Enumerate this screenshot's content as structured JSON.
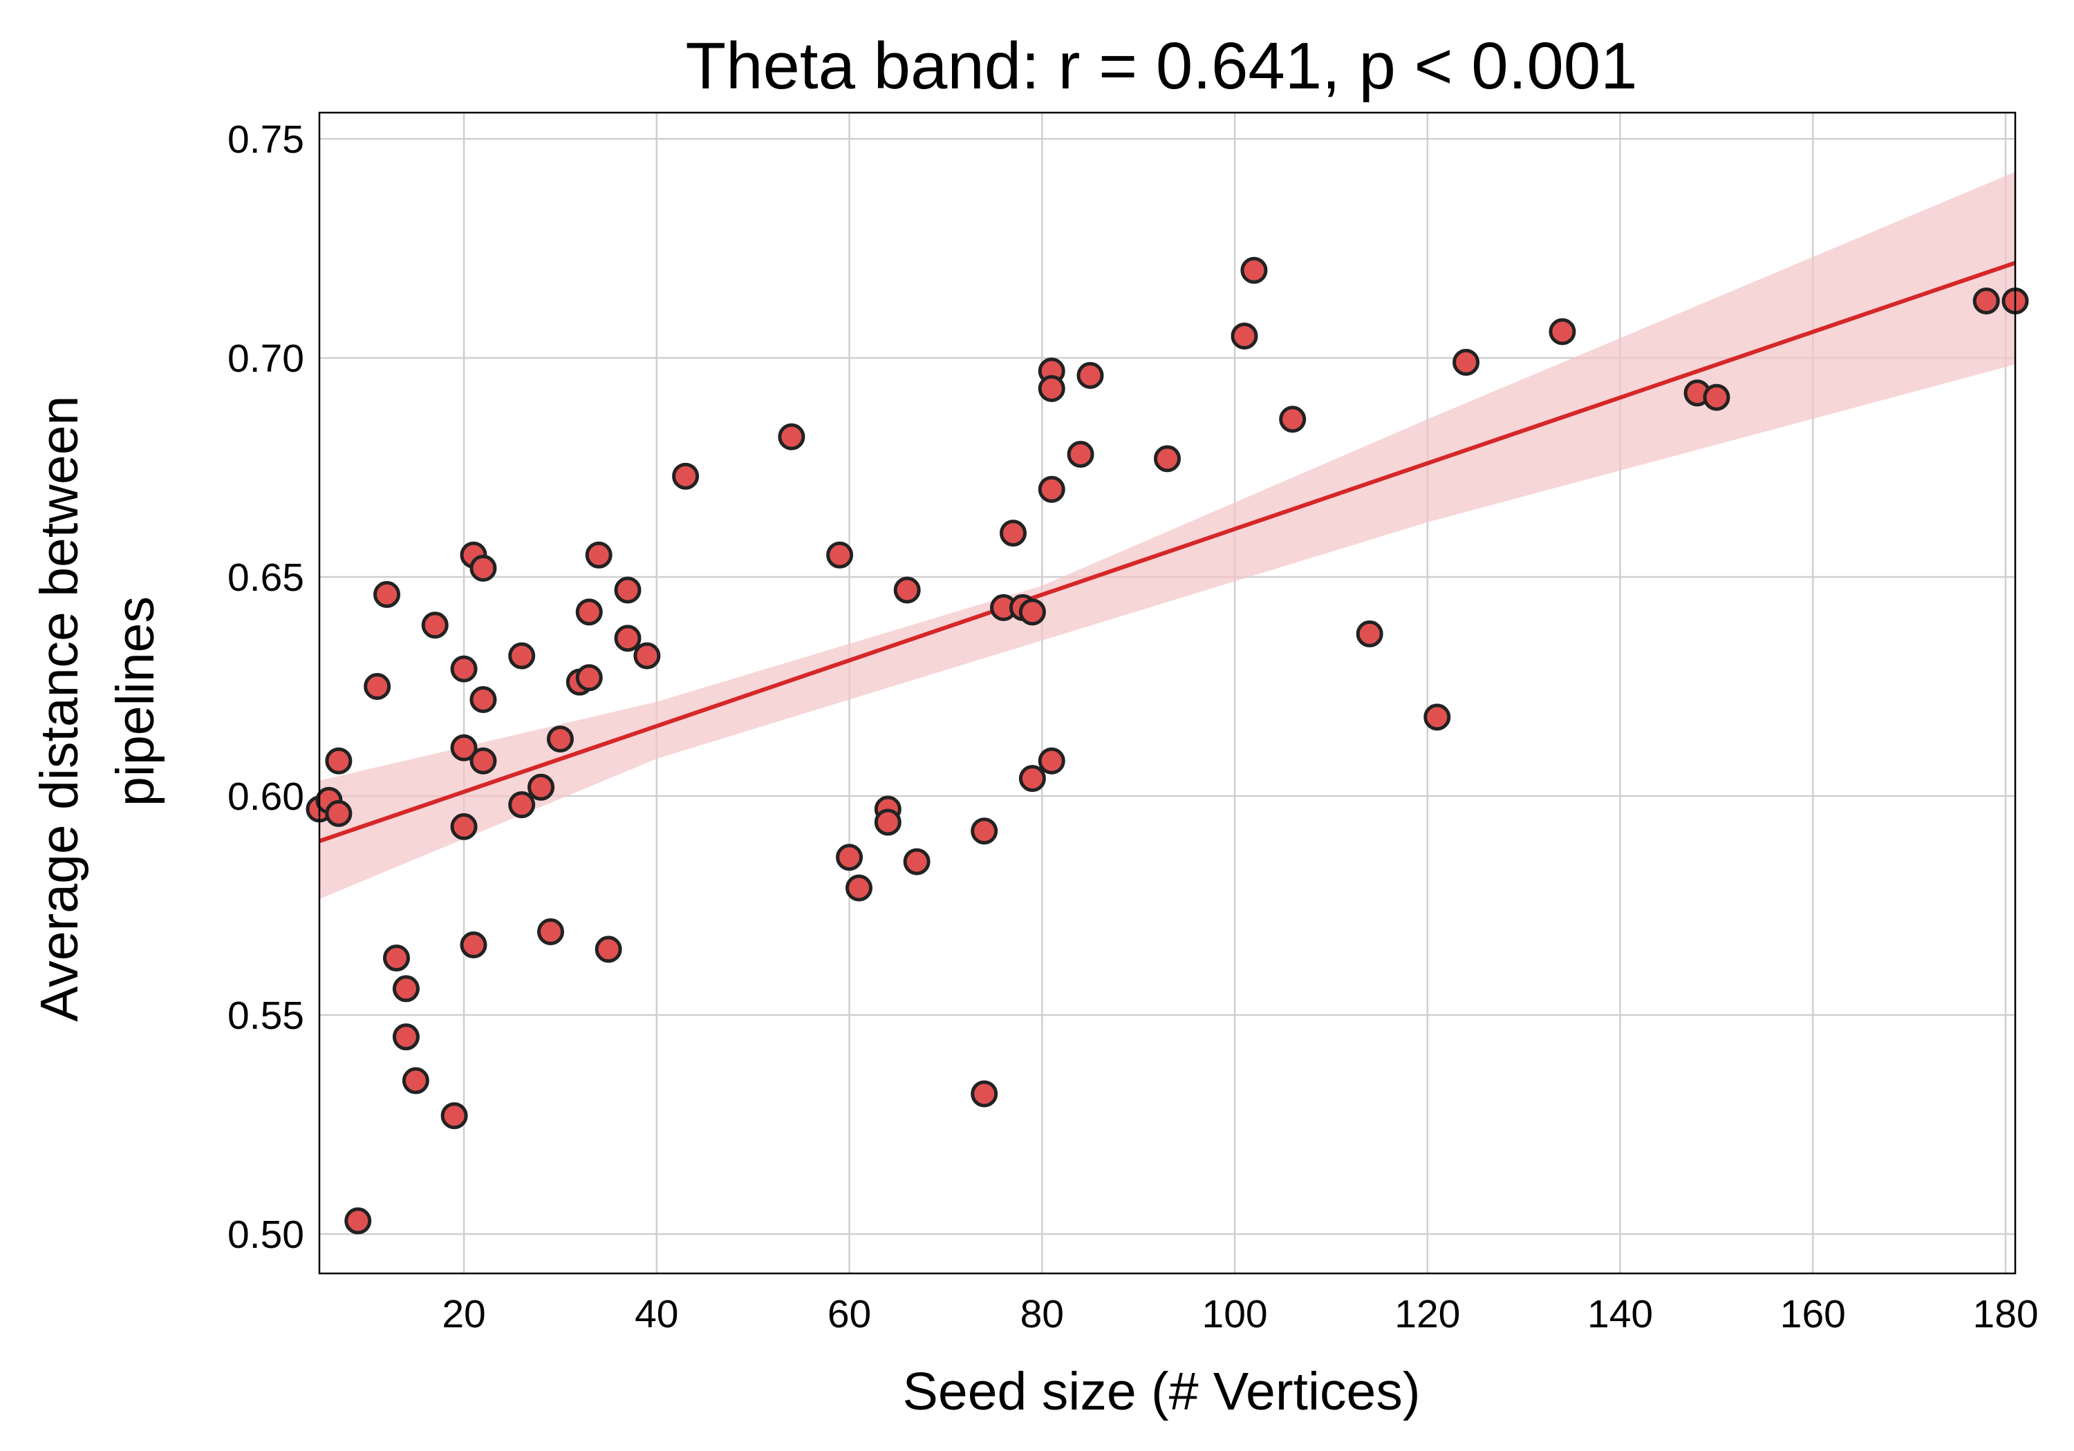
{
  "chart_data": {
    "type": "scatter",
    "title": "Theta band: r = 0.641, p < 0.001",
    "xlabel": "Seed size (# Vertices)",
    "ylabel_lines": [
      "Average distance between",
      "pipelines"
    ],
    "xlim": [
      5,
      181
    ],
    "ylim": [
      0.491,
      0.756
    ],
    "x_ticks": [
      20,
      40,
      60,
      80,
      100,
      120,
      140,
      160,
      180
    ],
    "y_ticks": [
      0.5,
      0.55,
      0.6,
      0.65,
      0.7,
      0.75
    ],
    "x_tick_labels": [
      "20",
      "40",
      "60",
      "80",
      "100",
      "120",
      "140",
      "160",
      "180"
    ],
    "y_tick_labels": [
      "0.50",
      "0.55",
      "0.60",
      "0.65",
      "0.70",
      "0.75"
    ],
    "grid": true,
    "colors": {
      "points": "#e05050",
      "point_edge": "#222222",
      "regression": "#d62728",
      "confidence_band": "#f4c4c8"
    },
    "points": [
      {
        "x": 5,
        "y": 0.597
      },
      {
        "x": 6,
        "y": 0.599
      },
      {
        "x": 7,
        "y": 0.596
      },
      {
        "x": 7,
        "y": 0.608
      },
      {
        "x": 9,
        "y": 0.503
      },
      {
        "x": 11,
        "y": 0.625
      },
      {
        "x": 12,
        "y": 0.646
      },
      {
        "x": 13,
        "y": 0.563
      },
      {
        "x": 14,
        "y": 0.556
      },
      {
        "x": 14,
        "y": 0.545
      },
      {
        "x": 15,
        "y": 0.535
      },
      {
        "x": 17,
        "y": 0.639
      },
      {
        "x": 19,
        "y": 0.527
      },
      {
        "x": 20,
        "y": 0.629
      },
      {
        "x": 20,
        "y": 0.611
      },
      {
        "x": 20,
        "y": 0.593
      },
      {
        "x": 21,
        "y": 0.655
      },
      {
        "x": 21,
        "y": 0.566
      },
      {
        "x": 22,
        "y": 0.652
      },
      {
        "x": 22,
        "y": 0.622
      },
      {
        "x": 22,
        "y": 0.608
      },
      {
        "x": 26,
        "y": 0.632
      },
      {
        "x": 26,
        "y": 0.598
      },
      {
        "x": 28,
        "y": 0.602
      },
      {
        "x": 29,
        "y": 0.569
      },
      {
        "x": 30,
        "y": 0.613
      },
      {
        "x": 32,
        "y": 0.626
      },
      {
        "x": 33,
        "y": 0.642
      },
      {
        "x": 33,
        "y": 0.627
      },
      {
        "x": 34,
        "y": 0.655
      },
      {
        "x": 35,
        "y": 0.565
      },
      {
        "x": 37,
        "y": 0.647
      },
      {
        "x": 37,
        "y": 0.636
      },
      {
        "x": 39,
        "y": 0.632
      },
      {
        "x": 43,
        "y": 0.673
      },
      {
        "x": 54,
        "y": 0.682
      },
      {
        "x": 59,
        "y": 0.655
      },
      {
        "x": 60,
        "y": 0.586
      },
      {
        "x": 61,
        "y": 0.579
      },
      {
        "x": 64,
        "y": 0.597
      },
      {
        "x": 64,
        "y": 0.594
      },
      {
        "x": 66,
        "y": 0.647
      },
      {
        "x": 67,
        "y": 0.585
      },
      {
        "x": 74,
        "y": 0.592
      },
      {
        "x": 74,
        "y": 0.532
      },
      {
        "x": 76,
        "y": 0.643
      },
      {
        "x": 77,
        "y": 0.66
      },
      {
        "x": 78,
        "y": 0.643
      },
      {
        "x": 79,
        "y": 0.642
      },
      {
        "x": 79,
        "y": 0.604
      },
      {
        "x": 81,
        "y": 0.697
      },
      {
        "x": 81,
        "y": 0.693
      },
      {
        "x": 81,
        "y": 0.67
      },
      {
        "x": 81,
        "y": 0.608
      },
      {
        "x": 84,
        "y": 0.678
      },
      {
        "x": 85,
        "y": 0.696
      },
      {
        "x": 93,
        "y": 0.677
      },
      {
        "x": 101,
        "y": 0.705
      },
      {
        "x": 102,
        "y": 0.72
      },
      {
        "x": 106,
        "y": 0.686
      },
      {
        "x": 114,
        "y": 0.637
      },
      {
        "x": 121,
        "y": 0.618
      },
      {
        "x": 124,
        "y": 0.699
      },
      {
        "x": 134,
        "y": 0.706
      },
      {
        "x": 148,
        "y": 0.692
      },
      {
        "x": 150,
        "y": 0.691
      },
      {
        "x": 178,
        "y": 0.713
      },
      {
        "x": 181,
        "y": 0.713
      }
    ],
    "regression_line": {
      "x": [
        5,
        181
      ],
      "y": [
        0.5897,
        0.7217
      ]
    },
    "confidence_band": {
      "x": [
        5,
        40,
        80,
        120,
        181
      ],
      "upper": [
        0.6035,
        0.6215,
        0.648,
        0.686,
        0.7425
      ],
      "lower": [
        0.5765,
        0.6085,
        0.6355,
        0.6625,
        0.6985
      ]
    }
  }
}
